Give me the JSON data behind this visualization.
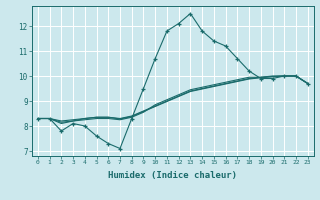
{
  "title": "",
  "xlabel": "Humidex (Indice chaleur)",
  "ylabel": "",
  "bg_color": "#cce8ed",
  "line_color": "#1a6b6b",
  "grid_color": "#ffffff",
  "xlim": [
    -0.5,
    23.5
  ],
  "ylim": [
    6.8,
    12.8
  ],
  "yticks": [
    7,
    8,
    9,
    10,
    11,
    12
  ],
  "xticks": [
    0,
    1,
    2,
    3,
    4,
    5,
    6,
    7,
    8,
    9,
    10,
    11,
    12,
    13,
    14,
    15,
    16,
    17,
    18,
    19,
    20,
    21,
    22,
    23
  ],
  "series1_x": [
    0,
    1,
    2,
    3,
    4,
    5,
    6,
    7,
    8,
    9,
    10,
    11,
    12,
    13,
    14,
    15,
    16,
    17,
    18,
    19,
    20,
    21,
    22,
    23
  ],
  "series1_y": [
    8.3,
    8.3,
    7.8,
    8.1,
    8.0,
    7.6,
    7.3,
    7.1,
    8.3,
    9.5,
    10.7,
    11.8,
    12.1,
    12.5,
    11.8,
    11.4,
    11.2,
    10.7,
    10.2,
    9.9,
    9.9,
    10.0,
    10.0,
    9.7
  ],
  "series2_x": [
    0,
    1,
    2,
    3,
    4,
    5,
    6,
    7,
    8,
    9,
    10,
    11,
    12,
    13,
    14,
    15,
    16,
    17,
    18,
    19,
    20,
    21,
    22,
    23
  ],
  "series2_y": [
    8.3,
    8.3,
    8.15,
    8.2,
    8.3,
    8.35,
    8.35,
    8.3,
    8.4,
    8.6,
    8.8,
    9.0,
    9.2,
    9.4,
    9.5,
    9.6,
    9.7,
    9.8,
    9.9,
    9.95,
    10.0,
    10.0,
    10.0,
    9.7
  ],
  "series3_x": [
    0,
    1,
    2,
    3,
    4,
    5,
    6,
    7,
    8,
    9,
    10,
    11,
    12,
    13,
    14,
    15,
    16,
    17,
    18,
    19,
    20,
    21,
    22,
    23
  ],
  "series3_y": [
    8.3,
    8.3,
    8.2,
    8.25,
    8.3,
    8.35,
    8.35,
    8.28,
    8.38,
    8.58,
    8.78,
    8.98,
    9.18,
    9.38,
    9.48,
    9.58,
    9.68,
    9.78,
    9.88,
    9.93,
    9.97,
    10.0,
    10.0,
    9.7
  ],
  "series4_x": [
    0,
    1,
    2,
    3,
    4,
    5,
    6,
    7,
    8,
    9,
    10,
    11,
    12,
    13,
    14,
    15,
    16,
    17,
    18,
    19,
    20,
    21,
    22,
    23
  ],
  "series4_y": [
    8.3,
    8.3,
    8.1,
    8.2,
    8.25,
    8.3,
    8.3,
    8.25,
    8.35,
    8.55,
    8.85,
    9.05,
    9.25,
    9.45,
    9.55,
    9.65,
    9.75,
    9.85,
    9.95,
    9.95,
    9.98,
    10.0,
    10.0,
    9.7
  ]
}
